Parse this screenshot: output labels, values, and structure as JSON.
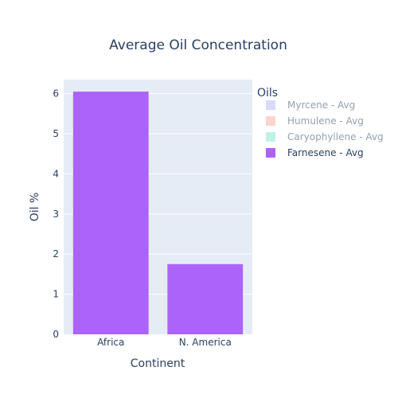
{
  "chart_data": {
    "type": "bar",
    "title": "Average Oil Concentration",
    "xlabel": "Continent",
    "ylabel": "Oil %",
    "categories": [
      "Africa",
      "N. America"
    ],
    "ylim": [
      0,
      6.35
    ],
    "yticks": [
      0,
      1,
      2,
      3,
      4,
      5,
      6
    ],
    "grid": true,
    "legend": {
      "title": "Oils",
      "placement": "right"
    },
    "series": [
      {
        "name": "Myrcene - Avg",
        "color": "#636efa",
        "visible": false,
        "values": [
          null,
          null
        ]
      },
      {
        "name": "Humulene - Avg",
        "color": "#ef553b",
        "visible": false,
        "values": [
          null,
          null
        ]
      },
      {
        "name": "Caryophyllene - Avg",
        "color": "#00cc96",
        "visible": false,
        "values": [
          null,
          null
        ]
      },
      {
        "name": "Farnesene - Avg",
        "color": "#ab63fa",
        "visible": true,
        "values": [
          6.05,
          1.75
        ]
      }
    ]
  }
}
